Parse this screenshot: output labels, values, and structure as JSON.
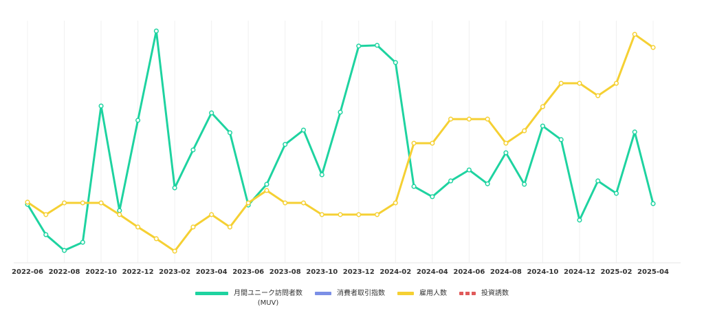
{
  "chart_data": {
    "type": "line",
    "categories": [
      "2022-06",
      null,
      "2022-08",
      null,
      "2022-10",
      null,
      "2022-12",
      null,
      "2023-02",
      null,
      "2023-04",
      null,
      "2023-06",
      null,
      "2023-08",
      null,
      "2023-10",
      null,
      "2023-12",
      null,
      "2024-02",
      null,
      "2024-04",
      null,
      "2024-06",
      null,
      "2024-08",
      null,
      "2024-10",
      null,
      "2024-12",
      null,
      "2025-02",
      null,
      "2025-04"
    ],
    "series": [
      {
        "name": "月間ユニーク訪問者数\n(MUV)",
        "color": "#1ed3a0",
        "values": [
          24.5,
          11.8,
          5.2,
          8.6,
          65.7,
          21.9,
          59.7,
          97.1,
          31.4,
          47.3,
          62.8,
          54.5,
          24.2,
          32.9,
          49.6,
          55.6,
          36.9,
          63.1,
          90.8,
          91.1,
          83.9,
          32.0,
          27.7,
          34.3,
          38.9,
          33.1,
          46.1,
          32.9,
          57.3,
          51.6,
          17.9,
          34.3,
          29.1,
          54.8,
          24.8
        ]
      },
      {
        "name": "消費者取引指数",
        "color": "#7b8fe6",
        "values": [
          null,
          null,
          null,
          null,
          null,
          null,
          null,
          null,
          null,
          null,
          null,
          null,
          null,
          null,
          null,
          null,
          null,
          null,
          null,
          null,
          null,
          null,
          null,
          null,
          null,
          null,
          null,
          null,
          null,
          null,
          null,
          null,
          null,
          null,
          null
        ]
      },
      {
        "name": "雇用人数",
        "color": "#f5d033",
        "values": [
          25.4,
          20.2,
          25.1,
          25.1,
          25.1,
          20.2,
          15.0,
          10.1,
          4.9,
          15.0,
          20.2,
          15.0,
          25.1,
          30.3,
          25.1,
          25.1,
          20.2,
          20.2,
          20.2,
          20.2,
          25.1,
          50.1,
          50.1,
          60.2,
          60.2,
          60.2,
          50.1,
          55.3,
          65.4,
          75.2,
          75.2,
          70.0,
          75.2,
          95.7,
          90.2
        ]
      },
      {
        "name": "投資誘数",
        "color": "#e05a5a",
        "dash": true,
        "values": [
          null,
          null,
          null,
          null,
          null,
          null,
          null,
          null,
          null,
          null,
          null,
          null,
          null,
          null,
          null,
          null,
          null,
          null,
          null,
          null,
          null,
          null,
          null,
          null,
          null,
          null,
          null,
          null,
          null,
          null,
          null,
          null,
          null,
          null,
          null
        ]
      }
    ],
    "ylim": [
      0,
      100
    ],
    "grid": true
  }
}
